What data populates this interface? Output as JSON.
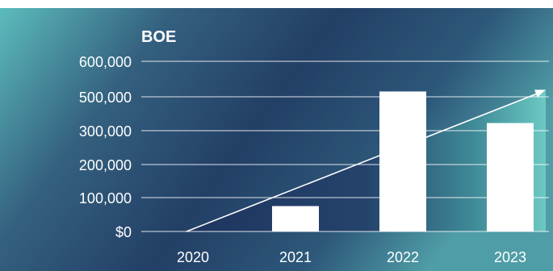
{
  "chart_data": {
    "type": "bar",
    "title": "BOE",
    "categories": [
      "2020",
      "2021",
      "2022",
      "2023"
    ],
    "values": [
      0,
      75000,
      515000,
      345000
    ],
    "y_tick_labels": [
      "$0",
      "100,000",
      "200,000",
      "300,000",
      "500,000",
      "600,000"
    ],
    "y_tick_values": [
      0,
      100000,
      200000,
      300000,
      500000,
      600000
    ],
    "ylim": [
      0,
      600000
    ],
    "grid": true,
    "legend": "none",
    "trend_line": {
      "from": {
        "x": "2020",
        "y": 0
      },
      "to": {
        "x": "2023",
        "y": 520000
      }
    }
  },
  "colors": {
    "background_dark": "#1f3a63",
    "background_teal": "#5fc3bd",
    "bar_fill": "#ffffff",
    "grid_line": "#ffffff",
    "text": "#ffffff"
  }
}
